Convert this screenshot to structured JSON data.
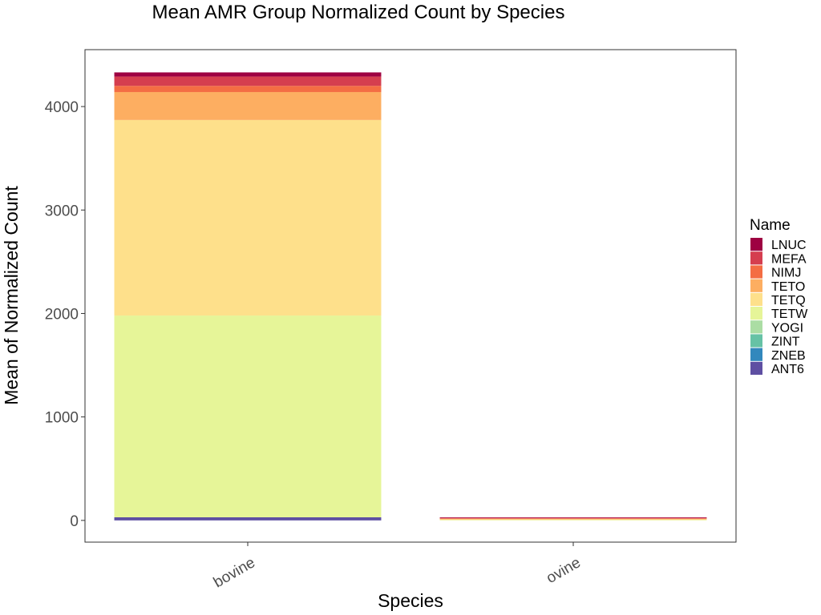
{
  "chart_data": {
    "type": "bar",
    "stacked": true,
    "title": "Mean AMR Group Normalized Count by Species",
    "xlabel": "Species",
    "ylabel": "Mean of Normalized Count",
    "categories": [
      "bovine",
      "ovine"
    ],
    "ylim": [
      -210,
      4550
    ],
    "yticks": [
      0,
      1000,
      2000,
      3000,
      4000
    ],
    "legend": {
      "title": "Name",
      "placement": "right"
    },
    "series": [
      {
        "name": "ANT6",
        "color": "#5e4fa2",
        "values": [
          30,
          0
        ]
      },
      {
        "name": "ZNEB",
        "color": "#3288bd",
        "values": [
          0,
          0
        ]
      },
      {
        "name": "ZINT",
        "color": "#66c2a5",
        "values": [
          0,
          0
        ]
      },
      {
        "name": "YOGI",
        "color": "#abdda4",
        "values": [
          0,
          0
        ]
      },
      {
        "name": "TETW",
        "color": "#e6f598",
        "values": [
          1950,
          5
        ]
      },
      {
        "name": "TETQ",
        "color": "#fee08b",
        "values": [
          1890,
          5
        ]
      },
      {
        "name": "TETO",
        "color": "#fdae61",
        "values": [
          270,
          5
        ]
      },
      {
        "name": "NIMJ",
        "color": "#f46d43",
        "values": [
          60,
          5
        ]
      },
      {
        "name": "MEFA",
        "color": "#d53e4f",
        "values": [
          90,
          5
        ]
      },
      {
        "name": "LNUC",
        "color": "#9e0142",
        "values": [
          40,
          5
        ]
      }
    ]
  }
}
